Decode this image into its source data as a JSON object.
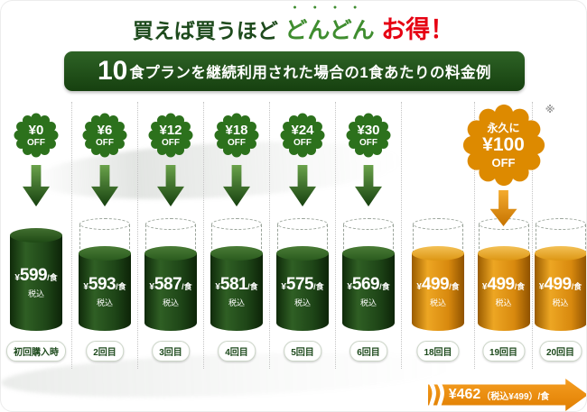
{
  "header": {
    "part1": "買えば買うほど",
    "part2": "どんどん",
    "part3": "お得！"
  },
  "banner": {
    "big": "10",
    "rest": "食プランを継続利用された場合の1食あたりの料金例"
  },
  "columns": [
    {
      "badge_amount": "¥0",
      "badge_off": "OFF",
      "yen": "¥",
      "price": "599",
      "unit": "/食",
      "tax": "税込",
      "label": "初回購入時"
    },
    {
      "badge_amount": "¥6",
      "badge_off": "OFF",
      "yen": "¥",
      "price": "593",
      "unit": "/食",
      "tax": "税込",
      "label": "2回目"
    },
    {
      "badge_amount": "¥12",
      "badge_off": "OFF",
      "yen": "¥",
      "price": "587",
      "unit": "/食",
      "tax": "税込",
      "label": "3回目"
    },
    {
      "badge_amount": "¥18",
      "badge_off": "OFF",
      "yen": "¥",
      "price": "581",
      "unit": "/食",
      "tax": "税込",
      "label": "4回目"
    },
    {
      "badge_amount": "¥24",
      "badge_off": "OFF",
      "yen": "¥",
      "price": "575",
      "unit": "/食",
      "tax": "税込",
      "label": "5回目"
    },
    {
      "badge_amount": "¥30",
      "badge_off": "OFF",
      "yen": "¥",
      "price": "569",
      "unit": "/食",
      "tax": "税込",
      "label": "6回目"
    },
    {
      "yen": "¥",
      "price": "499",
      "unit": "/食",
      "tax": "税込",
      "label": "18回目"
    },
    {
      "yen": "¥",
      "price": "499",
      "unit": "/食",
      "tax": "税込",
      "label": "19回目"
    },
    {
      "yen": "¥",
      "price": "499",
      "unit": "/食",
      "tax": "税込",
      "label": "20回目"
    }
  ],
  "big_badge": {
    "note": "※",
    "line1": "永久に",
    "amount": "¥100",
    "off": "OFF"
  },
  "bottom_arrow": {
    "main": "¥462",
    "sub": "（税込¥499）/食"
  },
  "colors": {
    "brand_green": "#1d4a1c",
    "accent_green": "#3f8d2f",
    "accent_red": "#e60012",
    "accent_orange": "#e08900"
  }
}
